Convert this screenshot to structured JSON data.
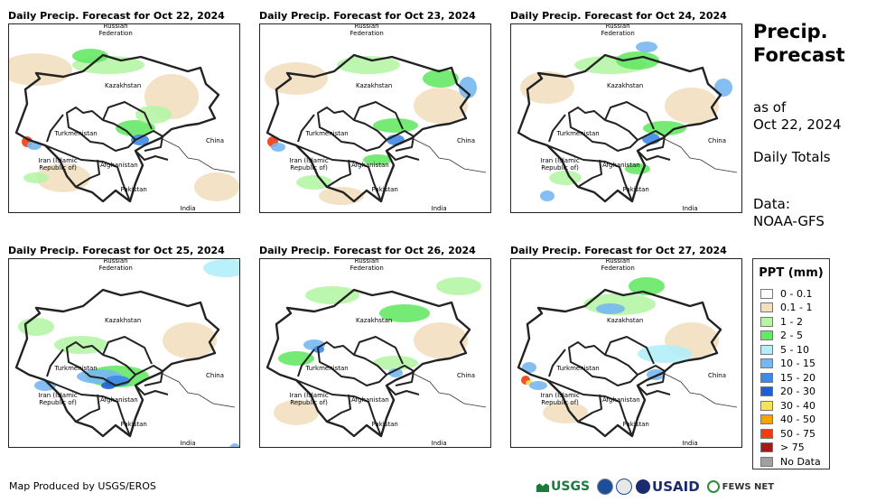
{
  "panels": [
    {
      "title": "Daily Precip. Forecast for Oct 22, 2024"
    },
    {
      "title": "Daily Precip. Forecast for Oct 23, 2024"
    },
    {
      "title": "Daily Precip. Forecast for Oct 24, 2024"
    },
    {
      "title": "Daily Precip. Forecast for Oct 25, 2024"
    },
    {
      "title": "Daily Precip. Forecast for Oct 26, 2024"
    },
    {
      "title": "Daily Precip. Forecast for Oct 27, 2024"
    }
  ],
  "map_labels": {
    "russia": "Russian\nFederation",
    "kazakhstan": "Kazakhstan",
    "turkmenistan": "Turkmenistan",
    "china": "China",
    "iran": "Iran  (Islamic\nRepublic of)",
    "afghanistan": "Afghanistan",
    "pakistan": "Pakistan",
    "india": "India"
  },
  "side": {
    "title_line1": "Precip.",
    "title_line2": "Forecast",
    "asof_line1": "as of",
    "asof_line2": "Oct 22, 2024",
    "totals": "Daily Totals",
    "data_line1": "Data:",
    "data_line2": "NOAA-GFS"
  },
  "legend": {
    "title": "PPT (mm)",
    "items": [
      {
        "label": "0 - 0.1",
        "color": "#ffffff"
      },
      {
        "label": "0.1 - 1",
        "color": "#f2dfbf"
      },
      {
        "label": "1 - 2",
        "color": "#b6f5a6"
      },
      {
        "label": "2 - 5",
        "color": "#66e866"
      },
      {
        "label": "5 - 10",
        "color": "#b3eef8"
      },
      {
        "label": "10 - 15",
        "color": "#77b7f1"
      },
      {
        "label": "15 - 20",
        "color": "#3d8ae8"
      },
      {
        "label": "20 - 30",
        "color": "#1f5fcf"
      },
      {
        "label": "30 - 40",
        "color": "#f8e25a"
      },
      {
        "label": "40 - 50",
        "color": "#f5a300"
      },
      {
        "label": "50 - 75",
        "color": "#f03c0f"
      },
      {
        "label": "> 75",
        "color": "#a81818"
      },
      {
        "label": "No Data",
        "color": "#a0a0a0"
      }
    ]
  },
  "footer": {
    "credit": "Map Produced by USGS/EROS"
  },
  "logos": {
    "usgs": "USGS",
    "usaid": "USAID",
    "fewsnet": "FEWS NET"
  }
}
